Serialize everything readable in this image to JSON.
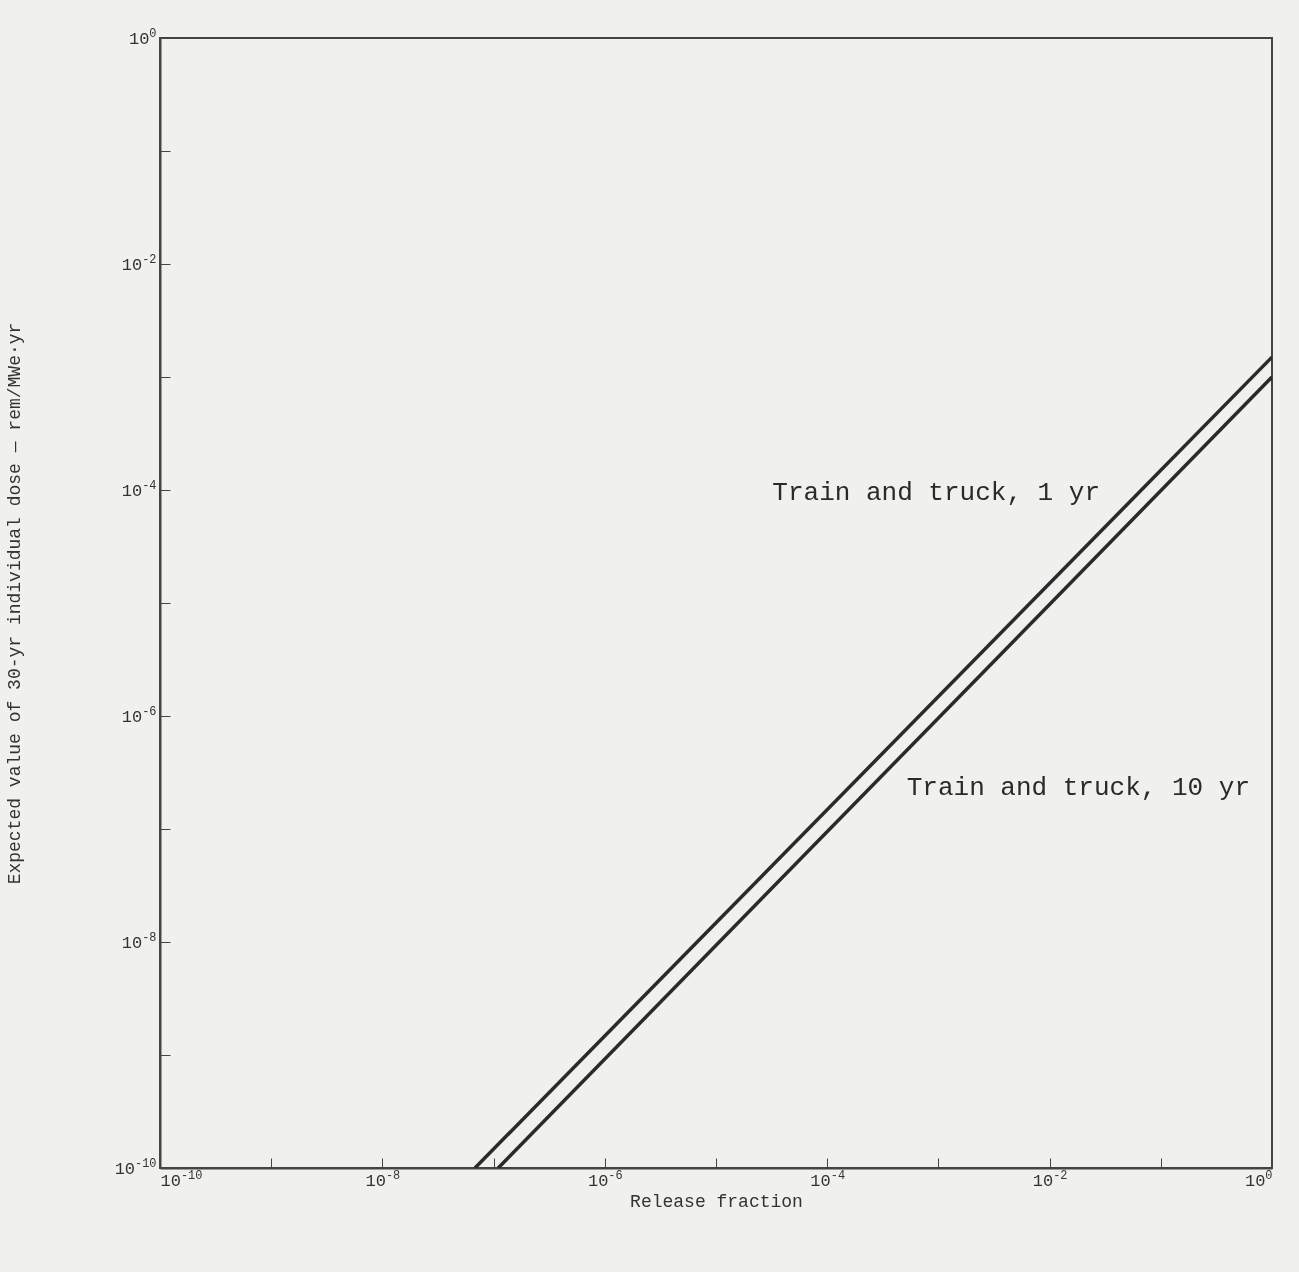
{
  "chart_data": {
    "type": "line",
    "xlabel": "Release fraction",
    "ylabel": "Expected  value of 30-yr individual dose — rem/MWe·yr",
    "log": "xy",
    "grid": false,
    "legend": false,
    "xlim": [
      1e-10,
      1
    ],
    "ylim": [
      1e-10,
      1
    ],
    "xticks": [
      {
        "value": 1e-10,
        "label": "10$^{-10}$"
      },
      {
        "value": 1e-09,
        "label": null
      },
      {
        "value": 1e-08,
        "label": "10$^{-8}$"
      },
      {
        "value": 1e-07,
        "label": null
      },
      {
        "value": 1e-06,
        "label": "10$^{-6}$"
      },
      {
        "value": 1e-05,
        "label": null
      },
      {
        "value": 0.0001,
        "label": "10$^{-4}$"
      },
      {
        "value": 0.001,
        "label": null
      },
      {
        "value": 0.01,
        "label": "10$^{-2}$"
      },
      {
        "value": 0.1,
        "label": null
      },
      {
        "value": 1,
        "label": "10$^{0}$"
      }
    ],
    "yticks": [
      {
        "value": 1e-10,
        "label": "10$^{-10}$"
      },
      {
        "value": 1e-09,
        "label": null
      },
      {
        "value": 1e-08,
        "label": "10$^{-8}$"
      },
      {
        "value": 1e-07,
        "label": null
      },
      {
        "value": 1e-06,
        "label": "10$^{-6}$"
      },
      {
        "value": 1e-05,
        "label": null
      },
      {
        "value": 0.0001,
        "label": "10$^{-4}$"
      },
      {
        "value": 0.001,
        "label": null
      },
      {
        "value": 0.01,
        "label": "10$^{-2}$"
      },
      {
        "value": 0.1,
        "label": null
      },
      {
        "value": 1,
        "label": "10$^{0}$"
      }
    ],
    "marker": "none",
    "line_style": "solid",
    "series": [
      {
        "name": "Train and truck, 1 yr",
        "color": "#2a2a2a",
        "x": [
          6.8e-08,
          1
        ],
        "values": [
          1e-10,
          0.0015
        ]
      },
      {
        "name": "Train and truck, 10 yr",
        "color": "#2a2a2a",
        "x": [
          1.1e-07,
          1
        ],
        "values": [
          1e-10,
          0.001
        ]
      }
    ]
  }
}
